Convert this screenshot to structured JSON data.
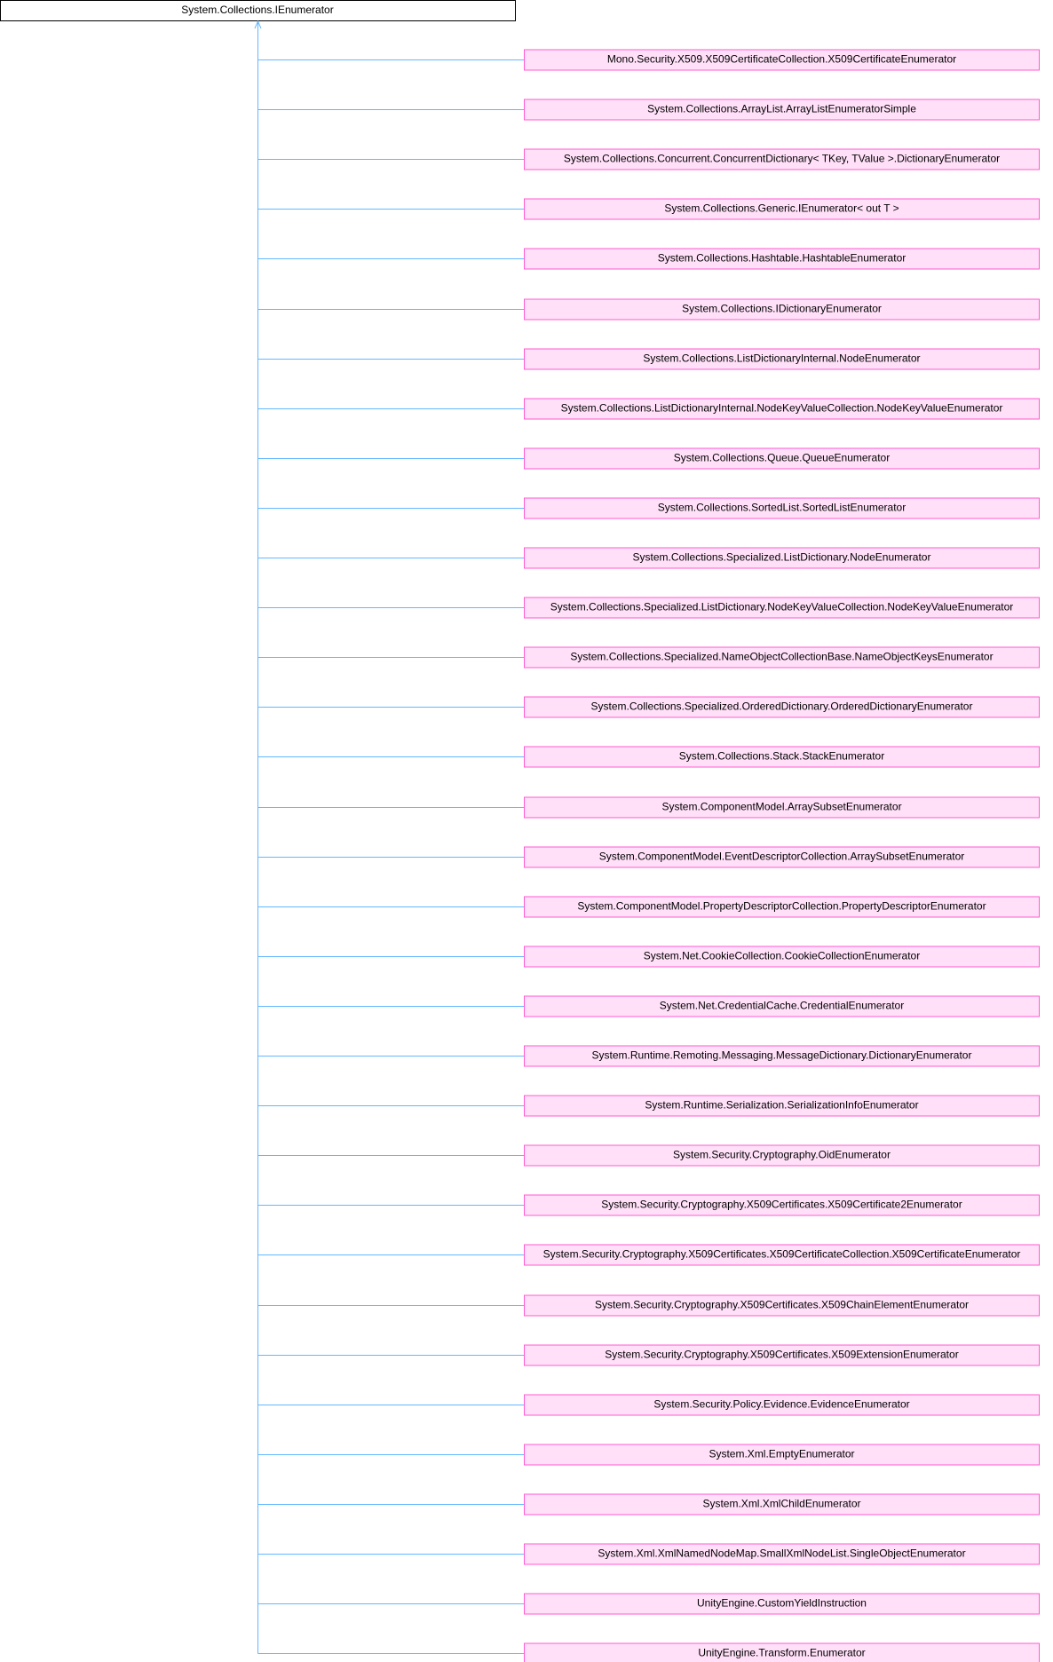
{
  "root": {
    "label": "System.Collections.IEnumerator"
  },
  "nodes": [
    {
      "label": "Mono.Security.X509.X509CertificateCollection.X509CertificateEnumerator"
    },
    {
      "label": "System.Collections.ArrayList.ArrayListEnumeratorSimple"
    },
    {
      "label": "System.Collections.Concurrent.ConcurrentDictionary< TKey, TValue >.DictionaryEnumerator"
    },
    {
      "label": "System.Collections.Generic.IEnumerator< out T >"
    },
    {
      "label": "System.Collections.Hashtable.HashtableEnumerator"
    },
    {
      "label": "System.Collections.IDictionaryEnumerator"
    },
    {
      "label": "System.Collections.ListDictionaryInternal.NodeEnumerator"
    },
    {
      "label": "System.Collections.ListDictionaryInternal.NodeKeyValueCollection.NodeKeyValueEnumerator"
    },
    {
      "label": "System.Collections.Queue.QueueEnumerator"
    },
    {
      "label": "System.Collections.SortedList.SortedListEnumerator"
    },
    {
      "label": "System.Collections.Specialized.ListDictionary.NodeEnumerator"
    },
    {
      "label": "System.Collections.Specialized.ListDictionary.NodeKeyValueCollection.NodeKeyValueEnumerator"
    },
    {
      "label": "System.Collections.Specialized.NameObjectCollectionBase.NameObjectKeysEnumerator"
    },
    {
      "label": "System.Collections.Specialized.OrderedDictionary.OrderedDictionaryEnumerator"
    },
    {
      "label": "System.Collections.Stack.StackEnumerator"
    },
    {
      "label": "System.ComponentModel.ArraySubsetEnumerator"
    },
    {
      "label": "System.ComponentModel.EventDescriptorCollection.ArraySubsetEnumerator"
    },
    {
      "label": "System.ComponentModel.PropertyDescriptorCollection.PropertyDescriptorEnumerator"
    },
    {
      "label": "System.Net.CookieCollection.CookieCollectionEnumerator"
    },
    {
      "label": "System.Net.CredentialCache.CredentialEnumerator"
    },
    {
      "label": "System.Runtime.Remoting.Messaging.MessageDictionary.DictionaryEnumerator"
    },
    {
      "label": "System.Runtime.Serialization.SerializationInfoEnumerator"
    },
    {
      "label": "System.Security.Cryptography.OidEnumerator"
    },
    {
      "label": "System.Security.Cryptography.X509Certificates.X509Certificate2Enumerator"
    },
    {
      "label": "System.Security.Cryptography.X509Certificates.X509CertificateCollection.X509CertificateEnumerator"
    },
    {
      "label": "System.Security.Cryptography.X509Certificates.X509ChainElementEnumerator"
    },
    {
      "label": "System.Security.Cryptography.X509Certificates.X509ExtensionEnumerator"
    },
    {
      "label": "System.Security.Policy.Evidence.EvidenceEnumerator"
    },
    {
      "label": "System.Xml.EmptyEnumerator"
    },
    {
      "label": "System.Xml.XmlChildEnumerator"
    },
    {
      "label": "System.Xml.XmlNamedNodeMap.SmallXmlNodeList.SingleObjectEnumerator"
    },
    {
      "label": "UnityEngine.CustomYieldInstruction"
    },
    {
      "label": "UnityEngine.Transform.Enumerator"
    }
  ]
}
